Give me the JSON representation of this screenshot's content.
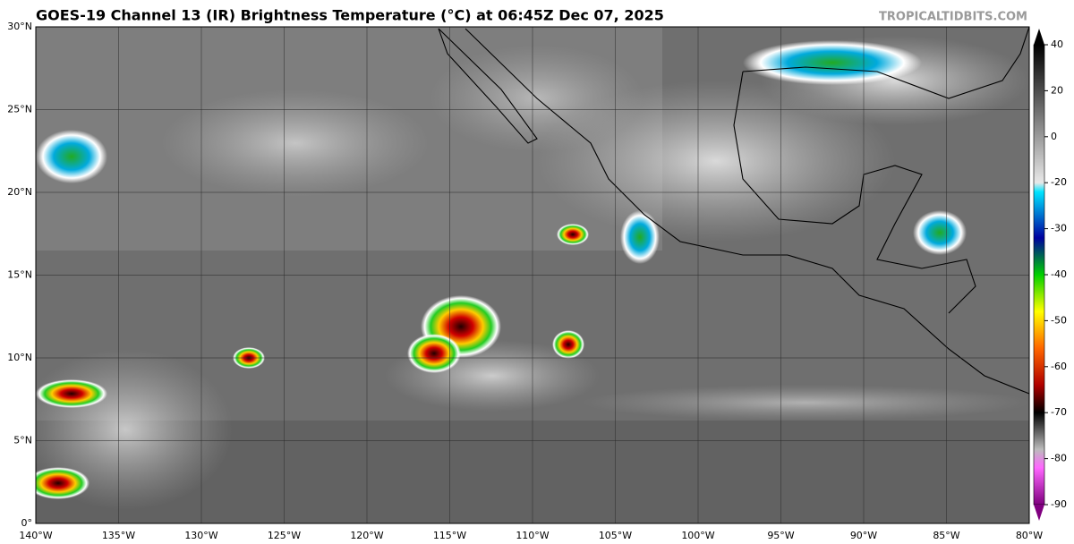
{
  "header": {
    "title": "GOES-19 Channel 13 (IR) Brightness Temperature (°C) at 06:45Z Dec 07, 2025",
    "source": "TROPICALTIDBITS.COM"
  },
  "map": {
    "lat_labels": [
      "30°N",
      "25°N",
      "20°N",
      "15°N",
      "10°N",
      "5°N",
      "0°"
    ],
    "lon_labels": [
      "140°W",
      "135°W",
      "130°W",
      "125°W",
      "120°W",
      "115°W",
      "110°W",
      "105°W",
      "100°W",
      "95°W",
      "90°W",
      "85°W",
      "80°W"
    ]
  },
  "colorbar": {
    "labels": [
      "40",
      "20",
      "0",
      "-20",
      "-30",
      "-40",
      "-50",
      "-60",
      "-70",
      "-80",
      "-90"
    ]
  }
}
